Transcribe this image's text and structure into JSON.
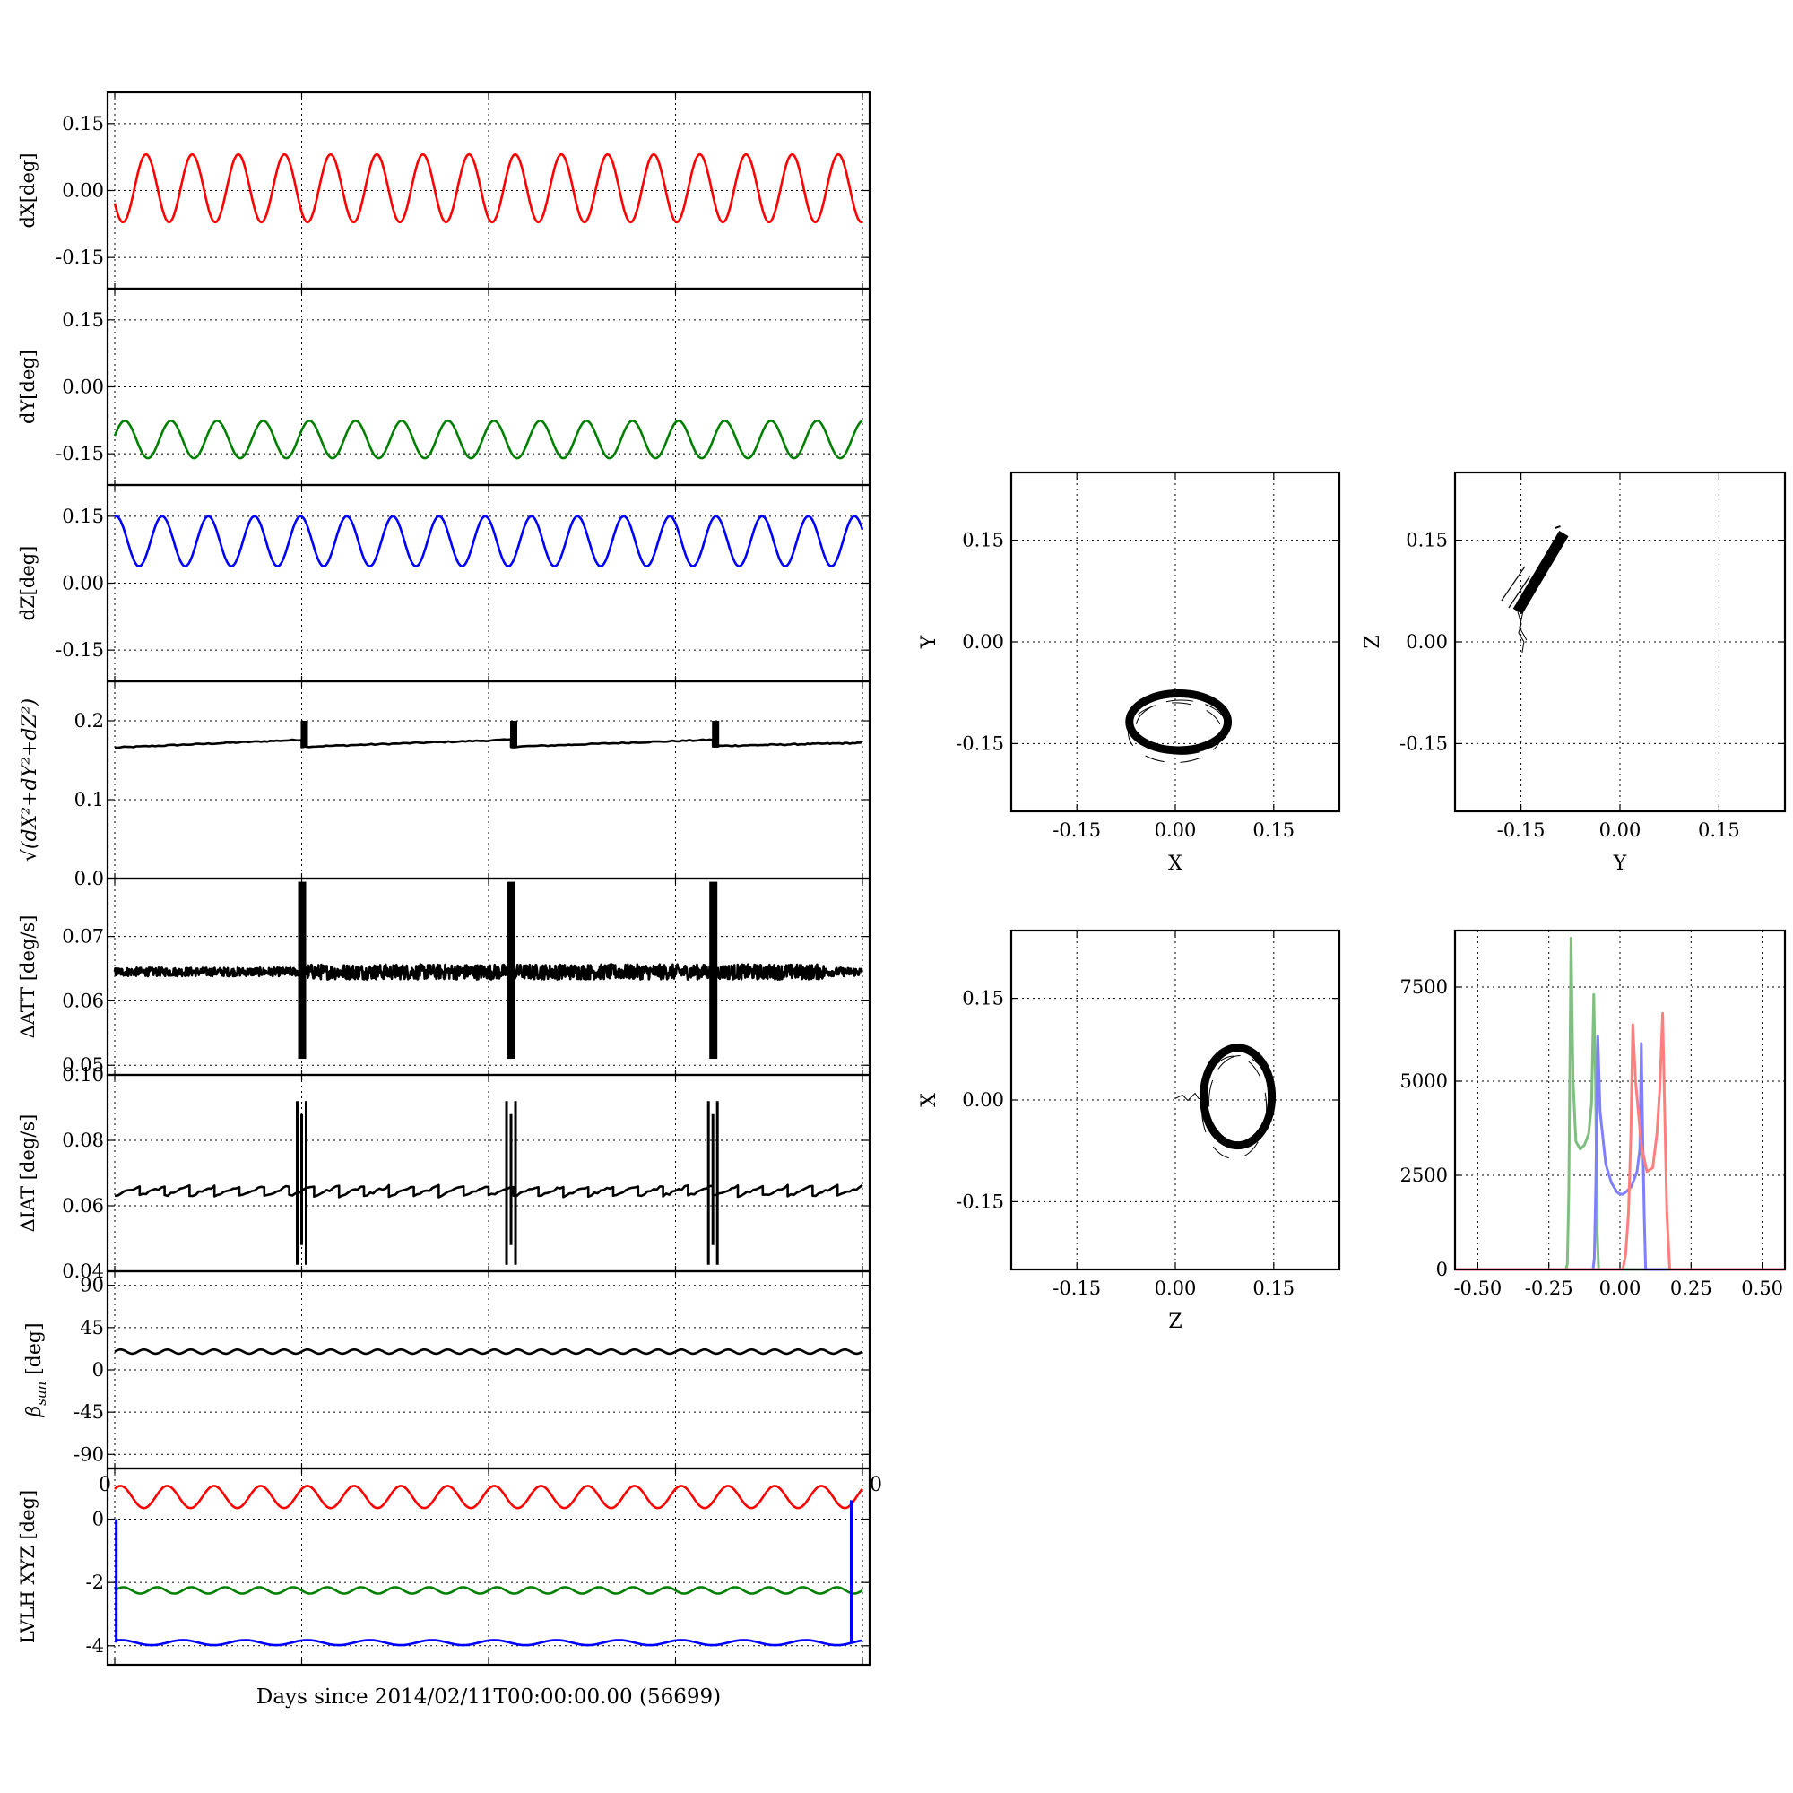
{
  "figure": {
    "xlabel": "Days since 2014/02/11T00:00:00.00 (56699)",
    "timeseries_x_range": [
      0,
      1
    ],
    "stray_tick_left": "0",
    "stray_tick_right": "0",
    "colors": {
      "red": "#ff0000",
      "green": "#008000",
      "blue": "#0000ff",
      "black": "#000000",
      "hist_red": "#ff7f7f",
      "hist_green": "#7fbf7f",
      "hist_blue": "#7f7fff"
    }
  },
  "chart_data": [
    {
      "id": "dx",
      "type": "line",
      "ylabel": "dX[deg]",
      "ylim": [
        -0.22,
        0.22
      ],
      "yticks": [
        "0.15",
        "0.00",
        "-0.15"
      ],
      "ytick_values": [
        0.15,
        0.0,
        -0.15
      ],
      "series": [
        {
          "color": "#ff0000",
          "model": {
            "kind": "sine",
            "mean": 0.005,
            "amp": 0.076,
            "cycles": 16.2,
            "phase": 3.6
          }
        }
      ]
    },
    {
      "id": "dy",
      "type": "line",
      "ylabel": "dY[deg]",
      "ylim": [
        -0.22,
        0.22
      ],
      "yticks": [
        "0.15",
        "0.00",
        "-0.15"
      ],
      "ytick_values": [
        0.15,
        0.0,
        -0.15
      ],
      "series": [
        {
          "color": "#008000",
          "model": {
            "kind": "sine",
            "mean": -0.118,
            "amp": 0.042,
            "cycles": 16.2,
            "phase": 0.2
          }
        }
      ]
    },
    {
      "id": "dz",
      "type": "line",
      "ylabel": "dZ[deg]",
      "ylim": [
        -0.22,
        0.22
      ],
      "yticks": [
        "0.15",
        "0.00",
        "-0.15"
      ],
      "ytick_values": [
        0.15,
        0.0,
        -0.15
      ],
      "series": [
        {
          "color": "#0000ff",
          "model": {
            "kind": "sine",
            "mean": 0.094,
            "amp": 0.056,
            "cycles": 16.2,
            "phase": 1.4
          }
        }
      ]
    },
    {
      "id": "mag",
      "type": "line",
      "ylabel_math": "√(dX²+dY²+dZ²)",
      "ylim": [
        0,
        0.25
      ],
      "yticks": [
        "0.2",
        "0.1",
        "0.0"
      ],
      "ytick_values": [
        0.2,
        0.1,
        0.0
      ],
      "series": [
        {
          "color": "#000000",
          "model": {
            "kind": "sawtooth",
            "segments": [
              [
                0,
                0.25,
                0.166,
                0.176
              ],
              [
                0.25,
                0.53,
                0.167,
                0.176
              ],
              [
                0.53,
                0.8,
                0.167,
                0.176
              ],
              [
                0.8,
                1,
                0.168,
                0.172
              ]
            ],
            "spikes": [
              0.25,
              0.53,
              0.8
            ],
            "spike_top": 0.2
          }
        }
      ]
    },
    {
      "id": "datt",
      "type": "line",
      "ylabel": "ΔATT [deg/s]",
      "ylim": [
        0.0485,
        0.079
      ],
      "yticks": [
        "0.07",
        "0.06",
        "0.05"
      ],
      "ytick_values": [
        0.07,
        0.06,
        0.05
      ],
      "series": [
        {
          "color": "#000000",
          "model": {
            "kind": "noise",
            "mean": 0.0645,
            "jitter": 0.0007,
            "spikes": [
              0.25,
              0.53,
              0.8
            ],
            "spike_range": [
              0.051,
              0.0785
            ]
          }
        }
      ]
    },
    {
      "id": "diat",
      "type": "line",
      "ylabel": "ΔIAT [deg/s]",
      "ylim": [
        0.04,
        0.1
      ],
      "yticks": [
        "0.10",
        "0.08",
        "0.06",
        "0.04"
      ],
      "ytick_values": [
        0.1,
        0.08,
        0.06,
        0.04
      ],
      "series": [
        {
          "color": "#000000",
          "model": {
            "kind": "ramps",
            "mean": 0.0645,
            "ramp": 0.003,
            "n": 30,
            "spikes": [
              0.25,
              0.53,
              0.8
            ],
            "spike_range": [
              0.042,
              0.092
            ]
          }
        }
      ]
    },
    {
      "id": "beta",
      "type": "line",
      "ylabel_math": "β",
      "ylabel_sub": "sun",
      "ylabel_unit": " [deg]",
      "ylim": [
        -105,
        105
      ],
      "yticks": [
        "90",
        "45",
        "0",
        "-45",
        "-90"
      ],
      "ytick_values": [
        90,
        45,
        0,
        -45,
        -90
      ],
      "series": [
        {
          "color": "#000000",
          "model": {
            "kind": "sine",
            "mean": 19.5,
            "amp": 2.2,
            "cycles": 32,
            "phase": 0
          }
        }
      ]
    },
    {
      "id": "lvlh",
      "type": "line",
      "ylabel": "LVLH XYZ [deg]",
      "ylim": [
        -4.6,
        1.6
      ],
      "yticks": [
        "0",
        "-2",
        "-4"
      ],
      "ytick_values": [
        0,
        -2,
        -4
      ],
      "series": [
        {
          "color": "#ff0000",
          "model": {
            "kind": "sine",
            "mean": 0.7,
            "amp": 0.35,
            "cycles": 16,
            "phase": 0.8
          }
        },
        {
          "color": "#008000",
          "model": {
            "kind": "sine",
            "mean": -2.25,
            "amp": 0.1,
            "cycles": 22,
            "phase": 0
          }
        },
        {
          "color": "#0000ff",
          "model": {
            "kind": "sine",
            "mean": -3.9,
            "amp": 0.08,
            "cycles": 12,
            "phase": 1
          }
        }
      ]
    },
    {
      "id": "xy",
      "type": "scatter",
      "xlabel": "X",
      "ylabel": "Y",
      "xlim": [
        -0.25,
        0.25
      ],
      "ylim": [
        -0.25,
        0.25
      ],
      "ticks": [
        "-0.15",
        "0.00",
        "0.15"
      ],
      "tick_values": [
        -0.15,
        0.0,
        0.15
      ],
      "shape": {
        "kind": "ellipse",
        "cx": 0.005,
        "cy": -0.118,
        "rx": 0.075,
        "ry": 0.042
      }
    },
    {
      "id": "yz",
      "type": "scatter",
      "xlabel": "Y",
      "ylabel": "Z",
      "xlim": [
        -0.25,
        0.25
      ],
      "ylim": [
        -0.25,
        0.25
      ],
      "ticks": [
        "-0.15",
        "0.00",
        "0.15"
      ],
      "tick_values": [
        -0.15,
        0.0,
        0.15
      ],
      "shape": {
        "kind": "band",
        "from": [
          -0.155,
          0.045
        ],
        "to": [
          -0.085,
          0.16
        ]
      }
    },
    {
      "id": "zx",
      "type": "scatter",
      "xlabel": "Z",
      "ylabel": "X",
      "xlim": [
        -0.25,
        0.25
      ],
      "ylim": [
        -0.25,
        0.25
      ],
      "ticks": [
        "-0.15",
        "0.00",
        "0.15"
      ],
      "tick_values": [
        -0.15,
        0.0,
        0.15
      ],
      "shape": {
        "kind": "ellipse",
        "cx": 0.095,
        "cy": 0.005,
        "rx": 0.052,
        "ry": 0.072
      }
    },
    {
      "id": "hist",
      "type": "line",
      "xlim": [
        -0.58,
        0.58
      ],
      "ylim": [
        0,
        9000
      ],
      "xticks": [
        "-0.50",
        "-0.25",
        "0.00",
        "0.25",
        "0.50"
      ],
      "xtick_values": [
        -0.5,
        -0.25,
        0,
        0.25,
        0.5
      ],
      "yticks": [
        "7500",
        "5000",
        "2500",
        "0"
      ],
      "ytick_values": [
        7500,
        5000,
        2500,
        0
      ],
      "series": [
        {
          "color": "#7fbf7f",
          "x": [
            -0.58,
            -0.19,
            -0.185,
            -0.18,
            -0.172,
            -0.165,
            -0.155,
            -0.14,
            -0.125,
            -0.11,
            -0.1,
            -0.092,
            -0.086,
            -0.08,
            -0.075,
            0.58
          ],
          "y": [
            0,
            0,
            150,
            2000,
            8800,
            5000,
            3400,
            3200,
            3300,
            3600,
            4400,
            7300,
            5000,
            1000,
            0,
            0
          ]
        },
        {
          "color": "#7f7fff",
          "x": [
            -0.58,
            -0.095,
            -0.09,
            -0.085,
            -0.078,
            -0.07,
            -0.05,
            -0.03,
            -0.01,
            0.0,
            0.01,
            0.02,
            0.04,
            0.06,
            0.07,
            0.075,
            0.08,
            0.085,
            0.09,
            0.58
          ],
          "y": [
            0,
            0,
            300,
            2200,
            6200,
            4200,
            2800,
            2300,
            2050,
            2000,
            2000,
            2050,
            2200,
            2600,
            3200,
            6000,
            3500,
            1500,
            0,
            0
          ]
        },
        {
          "color": "#ff7f7f",
          "x": [
            -0.58,
            0.01,
            0.02,
            0.03,
            0.038,
            0.045,
            0.055,
            0.075,
            0.095,
            0.115,
            0.13,
            0.14,
            0.15,
            0.158,
            0.165,
            0.175,
            0.58
          ],
          "y": [
            0,
            0,
            400,
            1500,
            3500,
            6500,
            5000,
            3300,
            2600,
            2700,
            3600,
            4800,
            6800,
            4000,
            1500,
            0,
            0
          ]
        }
      ]
    }
  ]
}
